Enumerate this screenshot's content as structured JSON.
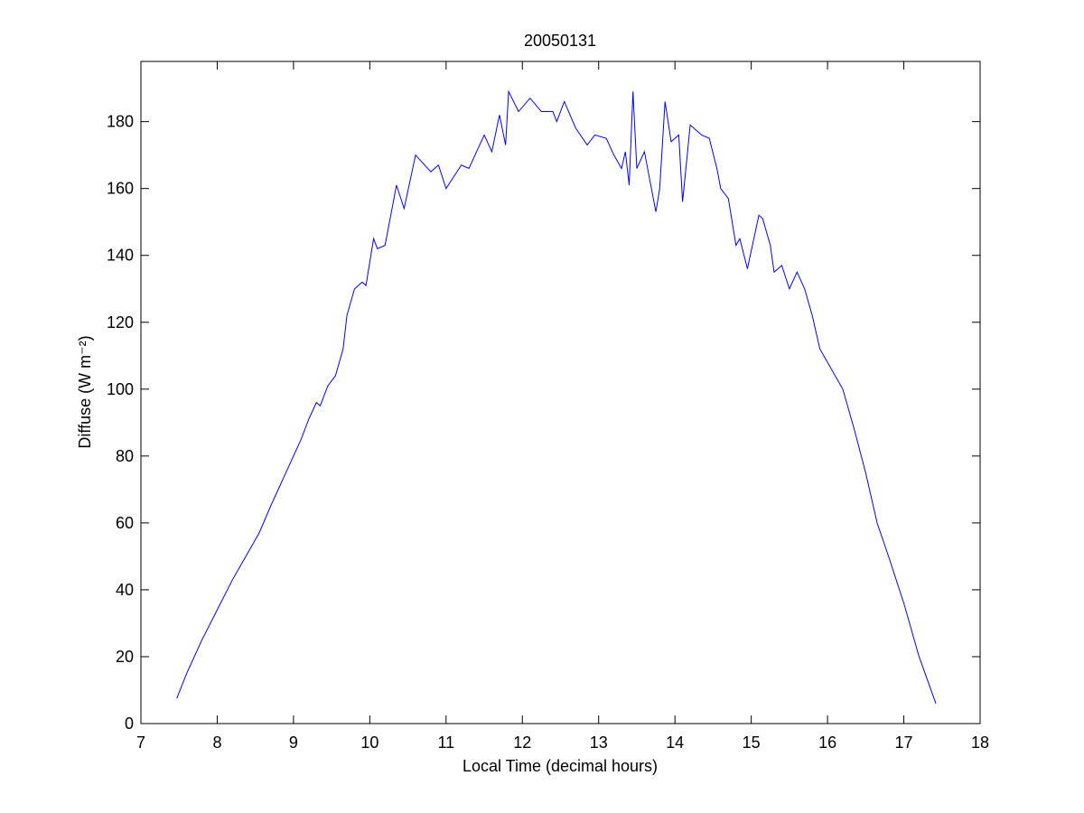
{
  "chart_data": {
    "type": "line",
    "title": "20050131",
    "xlabel": "Local Time (decimal hours)",
    "ylabel": "Diffuse (W m⁻²)",
    "xlim": [
      7,
      18
    ],
    "xticks": [
      7,
      8,
      9,
      10,
      11,
      12,
      13,
      14,
      15,
      16,
      17,
      18
    ],
    "ylim": [
      0,
      198
    ],
    "yticks": [
      0,
      20,
      40,
      60,
      80,
      100,
      120,
      140,
      160,
      180
    ],
    "grid": false,
    "series": [
      {
        "color": "#0000ff",
        "x": [
          7.47,
          7.6,
          7.8,
          8.0,
          8.2,
          8.4,
          8.55,
          8.7,
          8.8,
          8.9,
          9.0,
          9.1,
          9.2,
          9.3,
          9.35,
          9.45,
          9.55,
          9.65,
          9.7,
          9.8,
          9.9,
          9.95,
          10.0,
          10.05,
          10.1,
          10.2,
          10.3,
          10.35,
          10.45,
          10.6,
          10.8,
          10.9,
          11.0,
          11.2,
          11.3,
          11.5,
          11.6,
          11.7,
          11.78,
          11.82,
          11.95,
          12.1,
          12.25,
          12.4,
          12.45,
          12.55,
          12.7,
          12.85,
          12.95,
          13.1,
          13.2,
          13.3,
          13.35,
          13.4,
          13.45,
          13.5,
          13.6,
          13.75,
          13.8,
          13.87,
          13.95,
          14.05,
          14.1,
          14.2,
          14.35,
          14.45,
          14.55,
          14.6,
          14.7,
          14.8,
          14.85,
          14.95,
          15.1,
          15.15,
          15.25,
          15.3,
          15.4,
          15.5,
          15.6,
          15.7,
          15.8,
          15.9,
          16.0,
          16.2,
          16.35,
          16.5,
          16.65,
          16.8,
          17.0,
          17.2,
          17.42
        ],
        "values": [
          7.5,
          15,
          25,
          34,
          43,
          51,
          57,
          65,
          70,
          75,
          80,
          85,
          91,
          96,
          95,
          101,
          104,
          112,
          122,
          130,
          132,
          131,
          138,
          145,
          142,
          143,
          155,
          161,
          154,
          170,
          165,
          167,
          160,
          167,
          166,
          176,
          171,
          182,
          173,
          189,
          183,
          187,
          183,
          183,
          180,
          186,
          178,
          173,
          176,
          175,
          170,
          166,
          171,
          161,
          189,
          166,
          171,
          153,
          160,
          186,
          174,
          176,
          156,
          179,
          176,
          175,
          166,
          160,
          157,
          143,
          145,
          136,
          152,
          151,
          143,
          135,
          137,
          130,
          135,
          130,
          122,
          112,
          108,
          100,
          88,
          75,
          60,
          50,
          36,
          20,
          6
        ]
      }
    ]
  }
}
